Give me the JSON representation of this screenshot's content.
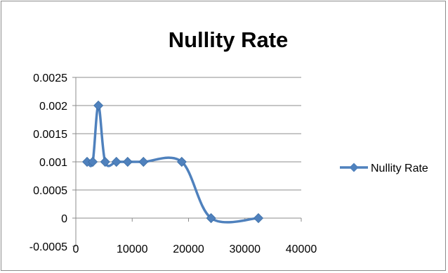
{
  "chart_data": {
    "type": "scatter",
    "title": "Nullity Rate",
    "xlabel": "",
    "ylabel": "",
    "xlim": [
      0,
      40000
    ],
    "ylim": [
      -0.0005,
      0.0025
    ],
    "x_ticks": [
      "0",
      "10000",
      "20000",
      "30000",
      "40000"
    ],
    "y_ticks": [
      "-0.0005",
      "0",
      "0.0005",
      "0.001",
      "0.0015",
      "0.002",
      "0.0025"
    ],
    "grid": "horizontal",
    "smooth_lines": true,
    "legend_position": "right",
    "series": [
      {
        "name": "Nullity Rate",
        "color": "#4F81BD",
        "marker": "diamond",
        "x": [
          2000,
          3000,
          4000,
          5200,
          7200,
          9200,
          12000,
          18800,
          24000,
          32400
        ],
        "y": [
          0.001,
          0.001,
          0.002,
          0.001,
          0.001,
          0.001,
          0.001,
          0.001,
          0,
          0
        ]
      }
    ]
  }
}
